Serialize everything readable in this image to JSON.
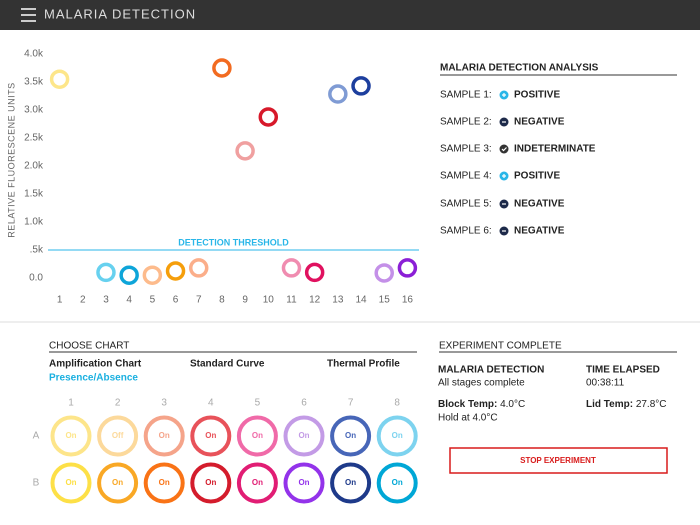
{
  "header": {
    "title": "MALARIA DETECTION"
  },
  "chart_data": {
    "type": "scatter",
    "y_label": "RELATIVE FLUORESCENE UNITS",
    "x": [
      1,
      3,
      4,
      5,
      6,
      7,
      8,
      9,
      10,
      11,
      12,
      13,
      14,
      15,
      16
    ],
    "values": [
      3550,
      100,
      50,
      50,
      125,
      180,
      3750,
      2270,
      2875,
      180,
      100,
      3285,
      3430,
      90,
      180
    ],
    "colors": [
      "#fde68a",
      "#67d1ef",
      "#0ea5d9",
      "#fdbb8c",
      "#f59e0b",
      "#fbae8a",
      "#f26b21",
      "#f0a0a0",
      "#d7192a",
      "#f08cb0",
      "#e0115f",
      "#7f9bd4",
      "#1d3f9e",
      "#c490e8",
      "#8b1fd6"
    ],
    "xlim": [
      0.5,
      16.5
    ],
    "xticks": [
      1,
      2,
      3,
      4,
      5,
      6,
      7,
      8,
      9,
      10,
      11,
      12,
      13,
      14,
      15,
      16
    ],
    "ylim": [
      0,
      4000
    ],
    "yticks": [
      {
        "value": 0,
        "label": "0.0"
      },
      {
        "value": 500,
        "label": ".5k"
      },
      {
        "value": 1000,
        "label": "1.0k"
      },
      {
        "value": 1500,
        "label": "1.5k"
      },
      {
        "value": 2000,
        "label": "2.0k"
      },
      {
        "value": 2500,
        "label": "2.5k"
      },
      {
        "value": 3000,
        "label": "3.0k"
      },
      {
        "value": 3500,
        "label": "3.5k"
      },
      {
        "value": 4000,
        "label": "4.0k"
      }
    ],
    "threshold": {
      "value": 500,
      "label": "DETECTION THRESHOLD",
      "color": "#29b6e8"
    },
    "grid": false
  },
  "analysis": {
    "title": "MALARIA DETECTION ANALYSIS",
    "samples": [
      {
        "label": "SAMPLE 1:",
        "status": "POSITIVE"
      },
      {
        "label": "SAMPLE 2:",
        "status": "NEGATIVE"
      },
      {
        "label": "SAMPLE 3:",
        "status": "INDETERMINATE"
      },
      {
        "label": "SAMPLE 4:",
        "status": "POSITIVE"
      },
      {
        "label": "SAMPLE 5:",
        "status": "NEGATIVE"
      },
      {
        "label": "SAMPLE 6:",
        "status": "NEGATIVE"
      }
    ]
  },
  "chooser": {
    "title": "CHOOSE CHART",
    "options": [
      "Amplification Chart",
      "Standard Curve",
      "Thermal Profile"
    ],
    "selected": "Presence/Absence"
  },
  "plate": {
    "columns": [
      "1",
      "2",
      "3",
      "4",
      "5",
      "6",
      "7",
      "8"
    ],
    "rows": [
      "A",
      "B"
    ],
    "wells": [
      [
        {
          "label": "On",
          "color": "#fde58a"
        },
        {
          "label": "Off",
          "color": "#fcd99b"
        },
        {
          "label": "On",
          "color": "#f5a48a"
        },
        {
          "label": "On",
          "color": "#e8525a"
        },
        {
          "label": "On",
          "color": "#f06aa8"
        },
        {
          "label": "On",
          "color": "#c39be6"
        },
        {
          "label": "On",
          "color": "#4766b8"
        },
        {
          "label": "On",
          "color": "#7dd3ef"
        }
      ],
      [
        {
          "label": "On",
          "color": "#fde047"
        },
        {
          "label": "On",
          "color": "#f9a825"
        },
        {
          "label": "On",
          "color": "#f97316"
        },
        {
          "label": "On",
          "color": "#d41c2c"
        },
        {
          "label": "On",
          "color": "#e11d74"
        },
        {
          "label": "On",
          "color": "#9333ea"
        },
        {
          "label": "On",
          "color": "#1e3a8a"
        },
        {
          "label": "On",
          "color": "#00a7d6"
        }
      ]
    ]
  },
  "experiment": {
    "title": "EXPERIMENT COMPLETE",
    "name": "MALARIA DETECTION",
    "state": "All stages complete",
    "time_label": "TIME ELAPSED",
    "time": "00:38:11",
    "block_label": "Block Temp:",
    "block_temp": "4.0°C",
    "hold": "Hold at 4.0°C",
    "lid_label": "Lid Temp:",
    "lid_temp": "27.8°C",
    "button": "STOP EXPERIMENT"
  }
}
